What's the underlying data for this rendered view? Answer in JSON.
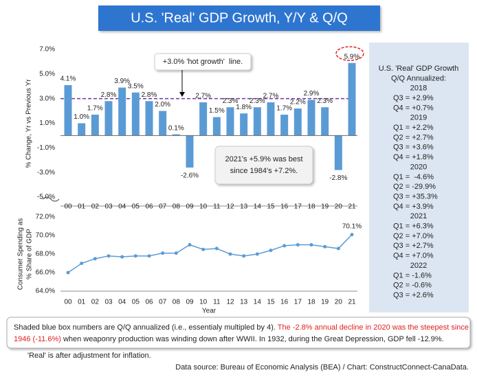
{
  "title": "U.S. 'Real' GDP Growth, Y/Y & Q/Q",
  "chart_data": [
    {
      "type": "bar",
      "ylabel": "% Change, Yr vs Previous Yr",
      "categories": [
        "00",
        "01",
        "02",
        "03",
        "04",
        "05",
        "06",
        "07",
        "08",
        "09",
        "10",
        "11",
        "12",
        "13",
        "14",
        "15",
        "16",
        "17",
        "18",
        "19",
        "20",
        "21"
      ],
      "values": [
        4.1,
        1.0,
        1.7,
        2.8,
        3.9,
        3.5,
        2.8,
        2.0,
        0.1,
        -2.6,
        2.7,
        1.5,
        2.3,
        1.8,
        2.3,
        2.7,
        1.7,
        2.2,
        2.9,
        2.3,
        -2.8,
        5.9
      ],
      "value_labels": [
        "4.1%",
        "1.0%",
        "1.7%",
        "2.8%",
        "3.9%",
        "3.5%",
        "2.8%",
        "2.0%",
        "0.1%",
        "-2.6%",
        "2.7%",
        "1.5%",
        "2.3%",
        "1.8%",
        "2.3%",
        "2.7%",
        "1.7%",
        "2.2%",
        "2.9%",
        "2.3%",
        "-2.8%",
        "5.9%"
      ],
      "color": "#5b9bd5",
      "ylim": [
        -5,
        7
      ],
      "yticks": [
        {
          "value": -5,
          "label": "-5.0%"
        },
        {
          "value": -3,
          "label": "-3.0%"
        },
        {
          "value": -1,
          "label": "-1.0%"
        },
        {
          "value": 1,
          "label": "1.0%"
        },
        {
          "value": 3,
          "label": "3.0%"
        },
        {
          "value": 5,
          "label": "5.0%"
        },
        {
          "value": 7,
          "label": "7.0%"
        }
      ],
      "reference_line": 3,
      "reference_color": "#7030a0",
      "reference_label": "+3.0% 'hot growth'  line.",
      "note": [
        "2021's +5.9% was best",
        "since 1984's +7.2%."
      ]
    },
    {
      "type": "line",
      "ylabel": [
        "Consumer Spending as",
        "% Share of GDP"
      ],
      "xlabel": "Year",
      "categories": [
        "00",
        "01",
        "02",
        "03",
        "04",
        "05",
        "06",
        "07",
        "08",
        "09",
        "10",
        "11",
        "12",
        "13",
        "14",
        "15",
        "16",
        "17",
        "18",
        "19",
        "20",
        "21"
      ],
      "values": [
        66.0,
        67.0,
        67.5,
        67.8,
        67.7,
        67.8,
        67.8,
        68.1,
        68.1,
        69.0,
        68.5,
        68.6,
        68.0,
        67.8,
        68.0,
        68.4,
        68.9,
        69.0,
        69.0,
        68.8,
        68.6,
        70.1
      ],
      "value_labels": [
        null,
        null,
        null,
        null,
        null,
        null,
        null,
        null,
        null,
        null,
        null,
        null,
        null,
        null,
        null,
        null,
        null,
        null,
        null,
        null,
        null,
        "70.1%"
      ],
      "color": "#5b9bd5",
      "ylim": [
        64,
        72
      ],
      "yticks": [
        {
          "value": 64,
          "label": "64.0%"
        },
        {
          "value": 66,
          "label": "66.0%"
        },
        {
          "value": 68,
          "label": "68.0%"
        },
        {
          "value": 70,
          "label": "70.0%"
        },
        {
          "value": 72,
          "label": "72.0%"
        }
      ]
    }
  ],
  "panel": {
    "title": [
      "U.S. 'Real' GDP Growth",
      "Q/Q Annualized:"
    ],
    "groups": [
      {
        "year": "2018",
        "lines": [
          "Q3 = +2.9%",
          "Q4 = +0.7%"
        ]
      },
      {
        "year": "2019",
        "lines": [
          "Q1 = +2.2%",
          "Q2 = +2.7%",
          "Q3 = +3.6%",
          "Q4 = +1.8%"
        ]
      },
      {
        "year": "2020",
        "lines": [
          "Q1 =  -4.6%",
          "Q2 = -29.9%",
          "Q3 = +35.3%",
          "Q4 = +3.9%"
        ]
      },
      {
        "year": "2021",
        "lines": [
          "Q1 = +6.3%",
          "Q2 = +7.0%",
          "Q3 = +2.7%",
          "Q4 = +7.0%"
        ]
      },
      {
        "year": "2022",
        "lines": [
          "Q1 = -1.6%",
          "Q2 = -0.6%",
          "Q3 = +2.6%"
        ]
      }
    ]
  },
  "notes": {
    "line1": [
      "Shaded blue box numbers are Q/Q annualized (i.e., essentialy multipled by 4). ",
      "The -2.8% annual decline in 2020 was the steepest since"
    ],
    "line2": [
      "1946 (-11.6%)",
      " when weaponry production was winding down after WWII. In 1932, during the Great Depression, GDP fell -12.9%."
    ],
    "real": "'Real' is after adjustment for inflation.",
    "source": "Data source: Bureau of Economic Analysis (BEA) / Chart: ConstructConnect-CanaData."
  }
}
